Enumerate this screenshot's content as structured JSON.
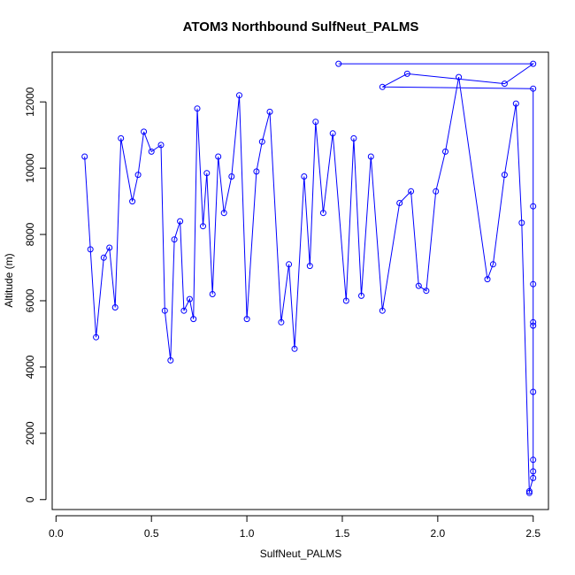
{
  "chart_data": {
    "type": "line",
    "title": "ATOM3 Northbound SulfNeut_PALMS",
    "xlabel": "SulfNeut_PALMS",
    "ylabel": "Altitude (m)",
    "xlim": [
      -0.02,
      2.58
    ],
    "ylim": [
      -300,
      13500
    ],
    "xticks": [
      "0.0",
      "0.5",
      "1.0",
      "1.5",
      "2.0",
      "2.5"
    ],
    "yticks": [
      "0",
      "2000",
      "4000",
      "6000",
      "8000",
      "10000",
      "12000"
    ],
    "grid": false,
    "legend": "none",
    "line_color": "#0000ff",
    "marker": "open-circle",
    "series": [
      {
        "x": [
          1.48,
          2.5,
          2.35,
          1.84,
          1.71,
          2.5,
          2.5,
          2.5,
          2.5,
          2.5,
          2.5,
          2.5,
          2.5,
          2.5,
          2.48,
          2.48,
          2.44,
          2.41,
          2.35,
          2.29,
          2.26,
          2.11,
          2.04,
          1.99,
          1.94,
          1.9,
          1.86,
          1.8,
          1.71,
          1.65,
          1.6,
          1.56,
          1.52,
          1.45,
          1.4,
          1.36,
          1.33,
          1.3,
          1.25,
          1.22,
          1.18,
          1.12,
          1.08,
          1.05,
          1.0,
          0.96,
          0.92,
          0.88,
          0.85,
          0.82,
          0.79,
          0.77,
          0.74,
          0.72,
          0.7,
          0.67,
          0.65,
          0.62,
          0.6,
          0.57,
          0.55,
          0.5,
          0.46,
          0.43,
          0.4,
          0.34,
          0.31,
          0.28,
          0.25,
          0.21,
          0.18,
          0.15
        ],
        "y": [
          13150,
          13150,
          12550,
          12850,
          12450,
          12400,
          8850,
          6500,
          5350,
          5250,
          3250,
          1200,
          850,
          650,
          250,
          200,
          8350,
          11950,
          9800,
          7100,
          6650,
          12750,
          10500,
          9300,
          6300,
          6450,
          9300,
          8950,
          5700,
          10350,
          6150,
          10900,
          6000,
          11050,
          8650,
          11400,
          7050,
          9750,
          4550,
          7100,
          5350,
          11700,
          10800,
          9900,
          5450,
          12200,
          9750,
          8650,
          10350,
          6200,
          9850,
          8250,
          11800,
          5450,
          6050,
          5700,
          8400,
          7850,
          4200,
          5700,
          10700,
          10500,
          11100,
          9800,
          9000,
          10900,
          5800,
          7600,
          7300,
          4900,
          7550,
          10350
        ]
      }
    ]
  }
}
